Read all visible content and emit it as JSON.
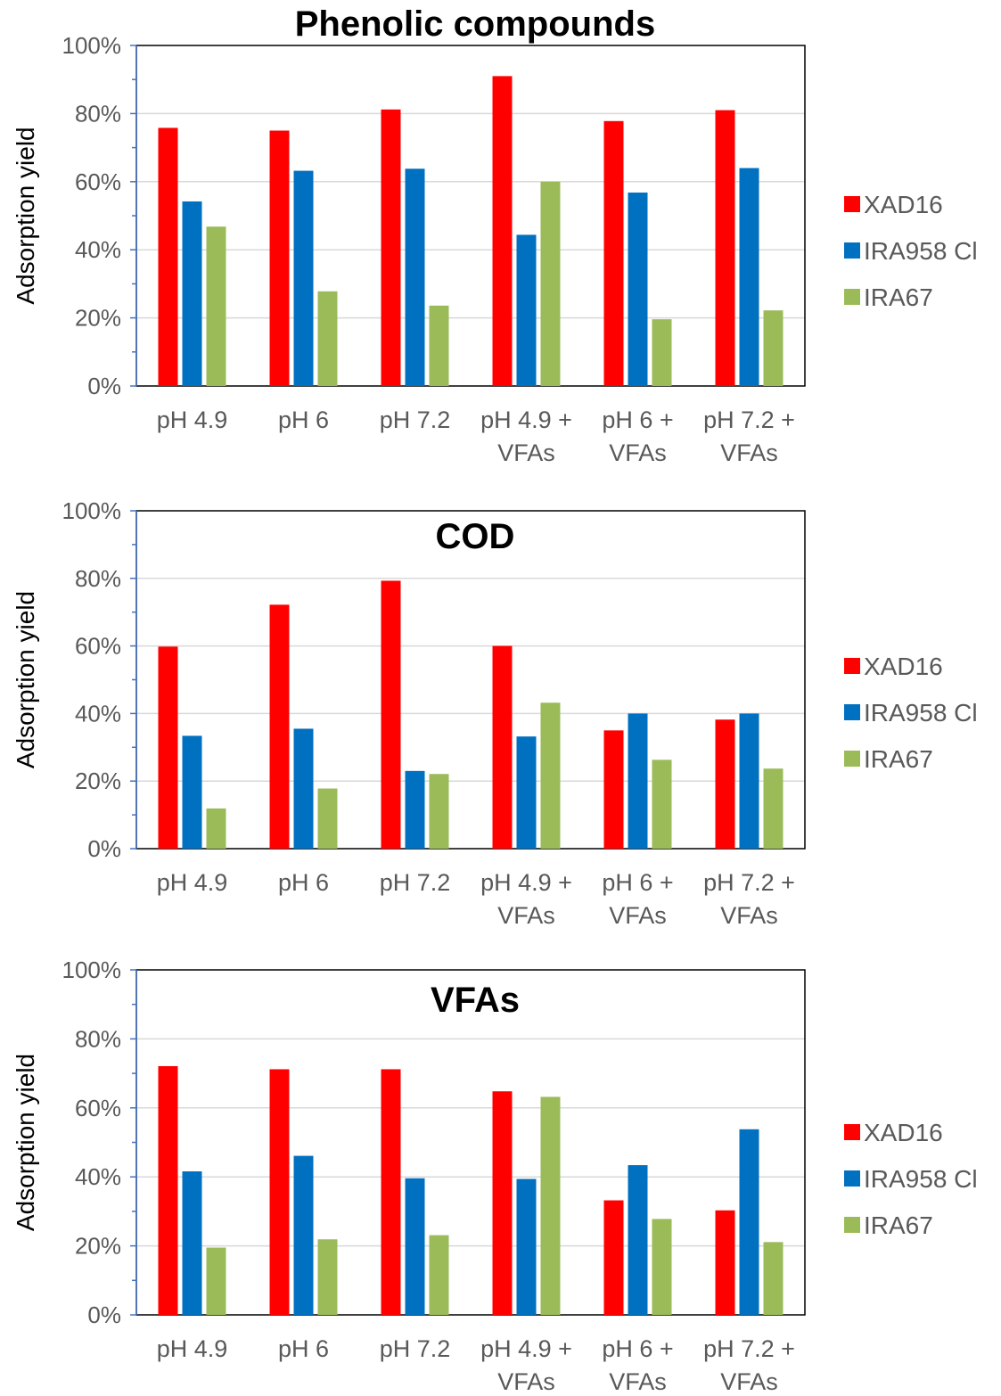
{
  "colors": {
    "XAD16": "#FF0000",
    "IRA958 Cl": "#0070C0",
    "IRA67": "#9BBB59"
  },
  "chart_data": [
    {
      "type": "bar",
      "title": "Phenolic compounds",
      "xlabel": "",
      "ylabel": "Adsorption yield",
      "ylim": [
        0,
        100
      ],
      "yticks": [
        "0%",
        "20%",
        "40%",
        "60%",
        "80%",
        "100%"
      ],
      "grid": true,
      "legend": "right",
      "categories": [
        [
          "pH 4.9"
        ],
        [
          "pH 6"
        ],
        [
          "pH 7.2"
        ],
        [
          "pH 4.9 +",
          "VFAs"
        ],
        [
          "pH 6 +",
          "VFAs"
        ],
        [
          "pH 7.2 +",
          "VFAs"
        ]
      ],
      "series": [
        {
          "name": "XAD16",
          "values": [
            75.8,
            75,
            81.2,
            91,
            77.8,
            81
          ]
        },
        {
          "name": "IRA958 Cl",
          "values": [
            54.2,
            63.2,
            63.8,
            44.4,
            56.8,
            64
          ]
        },
        {
          "name": "IRA67",
          "values": [
            46.8,
            27.8,
            23.6,
            60,
            19.6,
            22.2
          ]
        }
      ]
    },
    {
      "type": "bar",
      "title": "COD",
      "xlabel": "",
      "ylabel": "Adsorption yield",
      "ylim": [
        0,
        100
      ],
      "yticks": [
        "0%",
        "20%",
        "40%",
        "60%",
        "80%",
        "100%"
      ],
      "grid": true,
      "legend": "right",
      "categories": [
        [
          "pH 4.9"
        ],
        [
          "pH 6"
        ],
        [
          "pH 7.2"
        ],
        [
          "pH 4.9 +",
          "VFAs"
        ],
        [
          "pH 6 +",
          "VFAs"
        ],
        [
          "pH 7.2 +",
          "VFAs"
        ]
      ],
      "series": [
        {
          "name": "XAD16",
          "values": [
            59.8,
            72.2,
            79.3,
            60,
            35,
            38.2
          ]
        },
        {
          "name": "IRA958 Cl",
          "values": [
            33.4,
            35.5,
            23,
            33.2,
            40,
            40
          ]
        },
        {
          "name": "IRA67",
          "values": [
            11.9,
            17.8,
            22.1,
            43.2,
            26.3,
            23.7
          ]
        }
      ]
    },
    {
      "type": "bar",
      "title": "VFAs",
      "xlabel": "",
      "ylabel": "Adsorption yield",
      "ylim": [
        0,
        100
      ],
      "yticks": [
        "0%",
        "20%",
        "40%",
        "60%",
        "80%",
        "100%"
      ],
      "grid": true,
      "legend": "right",
      "categories": [
        [
          "pH 4.9"
        ],
        [
          "pH 6"
        ],
        [
          "pH 7.2"
        ],
        [
          "pH 4.9 +",
          "VFAs"
        ],
        [
          "pH 6 +",
          "VFAs"
        ],
        [
          "pH 7.2 +",
          "VFAs"
        ]
      ],
      "series": [
        {
          "name": "XAD16",
          "values": [
            72.1,
            71.2,
            71.2,
            64.8,
            33.2,
            30.3
          ]
        },
        {
          "name": "IRA958 Cl",
          "values": [
            41.6,
            46.1,
            39.6,
            39.4,
            43.4,
            53.8
          ]
        },
        {
          "name": "IRA67",
          "values": [
            19.5,
            21.9,
            23.1,
            63.2,
            27.8,
            21.1
          ]
        }
      ]
    }
  ]
}
